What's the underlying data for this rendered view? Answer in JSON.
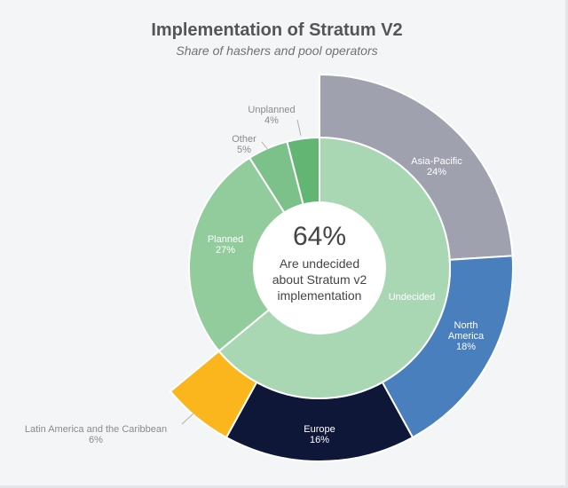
{
  "chart_data": {
    "type": "pie",
    "title": "Implementation of Stratum V2",
    "subtitle": "Share of hashers and pool operators",
    "center": {
      "value": "64%",
      "text": [
        "Are undecided",
        "about Stratum v2",
        "implementation"
      ]
    },
    "inner_ring": [
      {
        "label": "Undecided",
        "value_label": "",
        "value": 64,
        "color": "#a9d7b4"
      },
      {
        "label": "Planned",
        "value_label": "27%",
        "value": 27,
        "color": "#92cc9c"
      },
      {
        "label": "Other",
        "value_label": "5%",
        "value": 5,
        "color": "#7cc08a"
      },
      {
        "label": "Unplanned",
        "value_label": "4%",
        "value": 4,
        "color": "#63b574"
      }
    ],
    "outer_ring": [
      {
        "label": "Asia-Pacific",
        "value_label": "24%",
        "value": 24,
        "color": "#a0a1ae"
      },
      {
        "label": "North America",
        "value_label": "18%",
        "value": 18,
        "color": "#4a7fbd"
      },
      {
        "label": "Europe",
        "value_label": "16%",
        "value": 16,
        "color": "#0f1738"
      },
      {
        "label": "Latin America and the Caribbean",
        "value_label": "6%",
        "value": 6,
        "color": "#fbb61d"
      }
    ]
  }
}
